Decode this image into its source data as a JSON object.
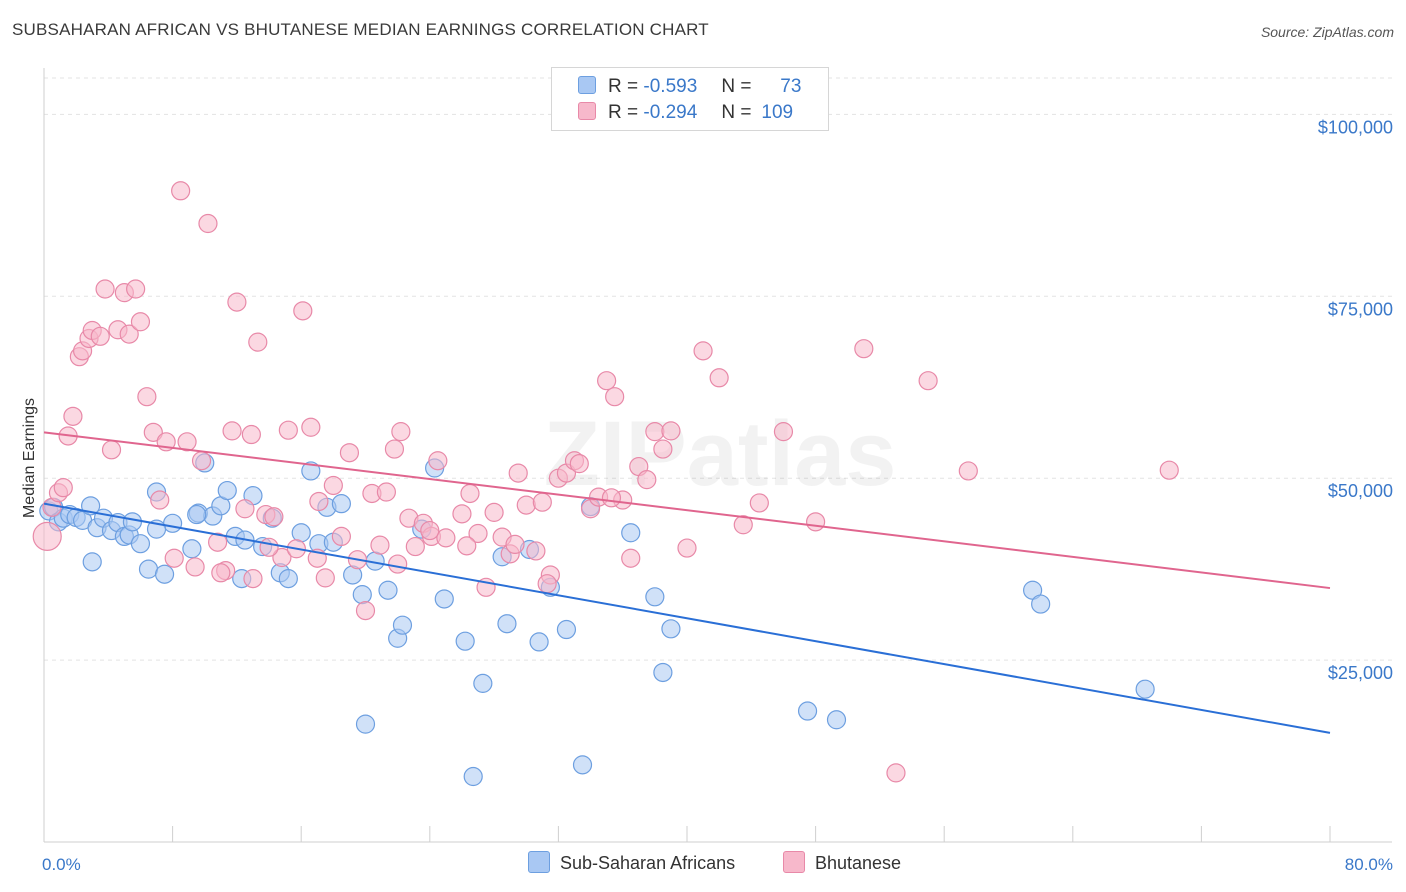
{
  "title": "SUBSAHARAN AFRICAN VS BHUTANESE MEDIAN EARNINGS CORRELATION CHART",
  "source": "Source: ZipAtlas.com",
  "watermark": "ZIPatlas",
  "legend": {
    "rows": [
      {
        "r_label": "R =",
        "r_value": "-0.593",
        "n_label": "N =",
        "n_value": "73",
        "color": "#a9c8f3",
        "border": "#6d9fe0"
      },
      {
        "r_label": "R =",
        "r_value": "-0.294",
        "n_label": "N =",
        "n_value": "109",
        "color": "#f7b8cb",
        "border": "#e889a8"
      }
    ]
  },
  "bottom_legend": [
    {
      "label": "Sub-Saharan Africans",
      "color": "#a9c8f3",
      "border": "#6d9fe0"
    },
    {
      "label": "Bhutanese",
      "color": "#f7b8cb",
      "border": "#e889a8"
    }
  ],
  "chart_data": {
    "type": "scatter",
    "title": "SUBSAHARAN AFRICAN VS BHUTANESE MEDIAN EARNINGS CORRELATION CHART",
    "ylabel": "Median Earnings",
    "xlim": [
      0,
      80
    ],
    "ylim": [
      0,
      105000
    ],
    "x_tick_labels": [
      "0.0%",
      "80.0%"
    ],
    "y_ticks": [
      25000,
      50000,
      75000,
      100000
    ],
    "y_tick_labels": [
      "$25,000",
      "$50,000",
      "$75,000",
      "$100,000"
    ],
    "grid": true,
    "legend_position": "top-center",
    "series": [
      {
        "name": "Sub-Saharan Africans",
        "color": "#6d9fe0",
        "fill": "#a9c8f3",
        "trend": {
          "x": [
            0,
            80
          ],
          "y": [
            46500,
            15000
          ],
          "color": "#2a6fd6"
        },
        "points": [
          [
            0.3,
            45500
          ],
          [
            0.6,
            46000
          ],
          [
            0.9,
            44000
          ],
          [
            1.2,
            44500
          ],
          [
            1.6,
            45000
          ],
          [
            2.0,
            44600
          ],
          [
            2.4,
            44200
          ],
          [
            2.9,
            46200
          ],
          [
            3.3,
            43200
          ],
          [
            3.7,
            44500
          ],
          [
            4.2,
            42800
          ],
          [
            4.6,
            43900
          ],
          [
            5.0,
            42000
          ],
          [
            5.3,
            42200
          ],
          [
            6.0,
            41000
          ],
          [
            6.5,
            37500
          ],
          [
            7.0,
            48100
          ],
          [
            7.5,
            36800
          ],
          [
            8.0,
            43800
          ],
          [
            9.2,
            40300
          ],
          [
            9.6,
            45200
          ],
          [
            10.0,
            52100
          ],
          [
            10.5,
            44800
          ],
          [
            11.0,
            46200
          ],
          [
            11.4,
            48300
          ],
          [
            11.9,
            42000
          ],
          [
            12.3,
            36200
          ],
          [
            13.0,
            47600
          ],
          [
            13.6,
            40600
          ],
          [
            14.2,
            44500
          ],
          [
            14.7,
            37000
          ],
          [
            15.2,
            36200
          ],
          [
            16.0,
            42500
          ],
          [
            16.6,
            51000
          ],
          [
            17.1,
            41000
          ],
          [
            17.6,
            46000
          ],
          [
            18.0,
            41200
          ],
          [
            18.5,
            46500
          ],
          [
            19.2,
            36700
          ],
          [
            19.8,
            34000
          ],
          [
            20.6,
            38600
          ],
          [
            21.4,
            34600
          ],
          [
            22.0,
            28000
          ],
          [
            22.3,
            29800
          ],
          [
            23.5,
            43000
          ],
          [
            24.3,
            51400
          ],
          [
            24.9,
            33400
          ],
          [
            26.2,
            27600
          ],
          [
            27.3,
            21800
          ],
          [
            28.5,
            39200
          ],
          [
            28.8,
            30000
          ],
          [
            30.2,
            40200
          ],
          [
            30.8,
            27500
          ],
          [
            31.5,
            35000
          ],
          [
            32.5,
            29200
          ],
          [
            33.5,
            10600
          ],
          [
            34.0,
            46100
          ],
          [
            26.7,
            9000
          ],
          [
            20.0,
            16200
          ],
          [
            36.5,
            42500
          ],
          [
            38.0,
            33700
          ],
          [
            38.5,
            23300
          ],
          [
            39.0,
            29300
          ],
          [
            47.5,
            18000
          ],
          [
            49.3,
            16800
          ],
          [
            61.5,
            34600
          ],
          [
            62.0,
            32700
          ],
          [
            68.5,
            21000
          ],
          [
            3.0,
            38500
          ],
          [
            7.0,
            43000
          ],
          [
            9.5,
            45000
          ],
          [
            5.5,
            44000
          ],
          [
            12.5,
            41500
          ]
        ]
      },
      {
        "name": "Bhutanese",
        "color": "#e889a8",
        "fill": "#f7b8cb",
        "trend": {
          "x": [
            0,
            80
          ],
          "y": [
            56300,
            34900
          ],
          "color": "#e0658e"
        },
        "points": [
          [
            0.2,
            42000
          ],
          [
            0.5,
            46000
          ],
          [
            0.9,
            48000
          ],
          [
            1.2,
            48700
          ],
          [
            1.5,
            55800
          ],
          [
            1.8,
            58500
          ],
          [
            2.2,
            66700
          ],
          [
            2.4,
            67500
          ],
          [
            2.8,
            69200
          ],
          [
            3.0,
            70300
          ],
          [
            3.5,
            69500
          ],
          [
            3.8,
            76000
          ],
          [
            4.2,
            53900
          ],
          [
            4.6,
            70400
          ],
          [
            5.0,
            75500
          ],
          [
            5.3,
            69800
          ],
          [
            5.7,
            76000
          ],
          [
            6.0,
            71500
          ],
          [
            6.4,
            61200
          ],
          [
            6.8,
            56300
          ],
          [
            7.2,
            47000
          ],
          [
            7.6,
            55000
          ],
          [
            8.1,
            39000
          ],
          [
            8.5,
            89500
          ],
          [
            8.9,
            55000
          ],
          [
            9.4,
            37800
          ],
          [
            9.8,
            52400
          ],
          [
            10.2,
            85000
          ],
          [
            10.8,
            41200
          ],
          [
            11.3,
            37300
          ],
          [
            11.7,
            56500
          ],
          [
            12.0,
            74200
          ],
          [
            12.5,
            45800
          ],
          [
            12.9,
            56000
          ],
          [
            13.3,
            68700
          ],
          [
            13.8,
            45000
          ],
          [
            14.3,
            44700
          ],
          [
            14.8,
            39100
          ],
          [
            15.2,
            56600
          ],
          [
            15.7,
            40300
          ],
          [
            16.1,
            73000
          ],
          [
            16.6,
            57000
          ],
          [
            17.1,
            46800
          ],
          [
            17.5,
            36300
          ],
          [
            18.0,
            49000
          ],
          [
            18.5,
            42000
          ],
          [
            19.0,
            53500
          ],
          [
            19.5,
            38800
          ],
          [
            20.0,
            31800
          ],
          [
            20.4,
            47900
          ],
          [
            20.9,
            40800
          ],
          [
            21.3,
            48100
          ],
          [
            21.8,
            54000
          ],
          [
            22.2,
            56400
          ],
          [
            22.7,
            44500
          ],
          [
            23.1,
            40600
          ],
          [
            23.6,
            43800
          ],
          [
            24.1,
            42000
          ],
          [
            24.5,
            52400
          ],
          [
            25.0,
            41800
          ],
          [
            26.0,
            45100
          ],
          [
            26.5,
            47900
          ],
          [
            27.0,
            42400
          ],
          [
            27.5,
            35000
          ],
          [
            28.0,
            45300
          ],
          [
            28.5,
            41900
          ],
          [
            29.0,
            39600
          ],
          [
            29.5,
            50700
          ],
          [
            30.0,
            46300
          ],
          [
            30.6,
            40000
          ],
          [
            31.0,
            46700
          ],
          [
            31.5,
            36700
          ],
          [
            32.0,
            50000
          ],
          [
            32.5,
            50700
          ],
          [
            33.0,
            52400
          ],
          [
            34.0,
            45800
          ],
          [
            34.5,
            47400
          ],
          [
            35.0,
            63400
          ],
          [
            35.5,
            61200
          ],
          [
            36.0,
            47000
          ],
          [
            36.5,
            39000
          ],
          [
            37.0,
            51600
          ],
          [
            37.5,
            49800
          ],
          [
            38.0,
            56400
          ],
          [
            38.5,
            54000
          ],
          [
            39.0,
            56500
          ],
          [
            40.0,
            40400
          ],
          [
            41.0,
            67500
          ],
          [
            42.0,
            63800
          ],
          [
            43.5,
            43600
          ],
          [
            44.5,
            46600
          ],
          [
            46.0,
            56400
          ],
          [
            48.0,
            44000
          ],
          [
            51.0,
            67800
          ],
          [
            55.0,
            63400
          ],
          [
            57.5,
            51000
          ],
          [
            70.0,
            51100
          ],
          [
            53.0,
            9500
          ],
          [
            11.0,
            37000
          ],
          [
            14.0,
            40500
          ],
          [
            17.0,
            39000
          ],
          [
            22.0,
            38200
          ],
          [
            24.0,
            42800
          ],
          [
            26.3,
            40700
          ],
          [
            29.3,
            40900
          ],
          [
            31.3,
            35500
          ],
          [
            33.3,
            52000
          ],
          [
            35.3,
            47300
          ],
          [
            13.0,
            36200
          ]
        ]
      }
    ]
  }
}
